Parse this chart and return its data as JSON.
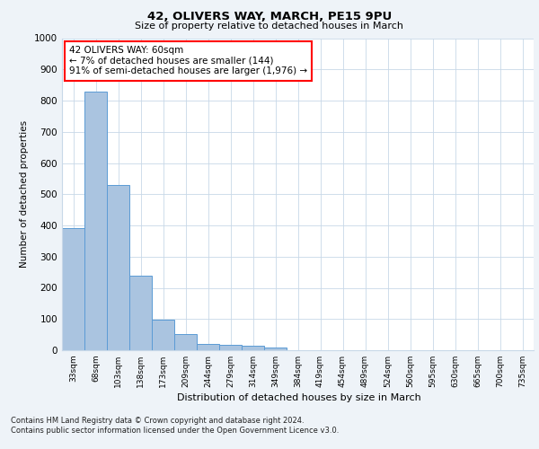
{
  "title": "42, OLIVERS WAY, MARCH, PE15 9PU",
  "subtitle": "Size of property relative to detached houses in March",
  "xlabel": "Distribution of detached houses by size in March",
  "ylabel": "Number of detached properties",
  "bar_labels": [
    "33sqm",
    "68sqm",
    "103sqm",
    "138sqm",
    "173sqm",
    "209sqm",
    "244sqm",
    "279sqm",
    "314sqm",
    "349sqm",
    "384sqm",
    "419sqm",
    "454sqm",
    "489sqm",
    "524sqm",
    "560sqm",
    "595sqm",
    "630sqm",
    "665sqm",
    "700sqm",
    "735sqm"
  ],
  "bar_values": [
    390,
    830,
    530,
    240,
    97,
    52,
    20,
    18,
    15,
    10,
    0,
    0,
    0,
    0,
    0,
    0,
    0,
    0,
    0,
    0,
    0
  ],
  "bar_color": "#aac4e0",
  "bar_edge_color": "#5b9bd5",
  "ylim": [
    0,
    1000
  ],
  "yticks": [
    0,
    100,
    200,
    300,
    400,
    500,
    600,
    700,
    800,
    900,
    1000
  ],
  "annotation_text": "42 OLIVERS WAY: 60sqm\n← 7% of detached houses are smaller (144)\n91% of semi-detached houses are larger (1,976) →",
  "footnote1": "Contains HM Land Registry data © Crown copyright and database right 2024.",
  "footnote2": "Contains public sector information licensed under the Open Government Licence v3.0.",
  "bg_color": "#eef3f8",
  "plot_bg_color": "#ffffff",
  "grid_color": "#c8d8e8"
}
